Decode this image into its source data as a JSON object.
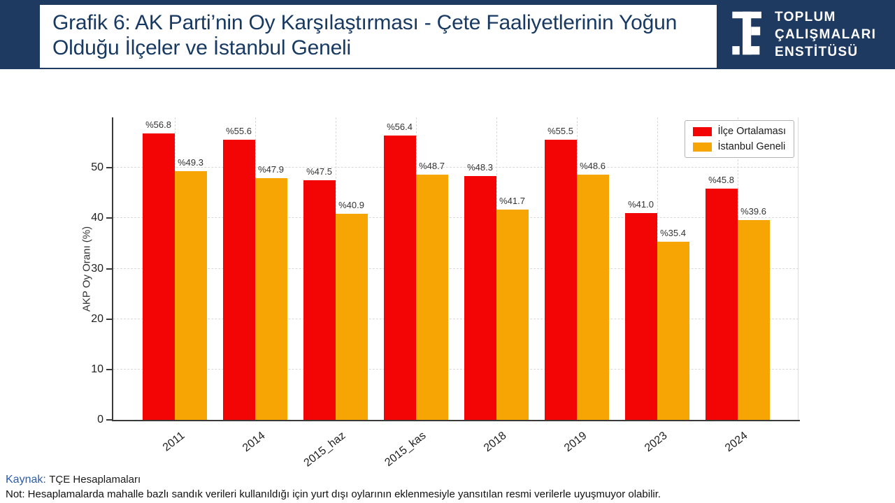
{
  "header": {
    "title": "Grafik 6: AK Parti’nin Oy Karşılaştırması  - Çete Faaliyetlerinin Yoğun Olduğu İlçeler ve İstanbul Geneli",
    "bg_color": "#1f3a60",
    "title_color": "#173962"
  },
  "logo": {
    "icon": "tce-monogram-icon",
    "lines": [
      "TOPLUM",
      "ÇALIŞMALARI",
      "ENSTİTÜSÜ"
    ]
  },
  "chart_data": {
    "type": "bar",
    "categories": [
      "2011",
      "2014",
      "2015_haz",
      "2015_kas",
      "2018",
      "2019",
      "2023",
      "2024"
    ],
    "series": [
      {
        "name": "İlçe Ortalaması",
        "color": "#f40505",
        "values": [
          56.8,
          55.6,
          47.5,
          56.4,
          48.3,
          55.5,
          41.0,
          45.8
        ]
      },
      {
        "name": "İstanbul Geneli",
        "color": "#f6a504",
        "values": [
          49.3,
          47.9,
          40.9,
          48.7,
          41.7,
          48.6,
          35.4,
          39.6
        ]
      }
    ],
    "value_label_prefix": "%",
    "ylabel": "AKP Oy Oranı (%)",
    "yticks": [
      0,
      10,
      20,
      30,
      40,
      50
    ],
    "ylim": [
      0,
      60
    ],
    "grid": true,
    "legend_position": "upper right"
  },
  "footer": {
    "kaynak_label": "Kaynak:",
    "kaynak_value": "TÇE Hesaplamaları",
    "note": "Not: Hesaplamalarda mahalle bazlı sandık verileri kullanıldığı için yurt dışı oylarının eklenmesiyle yansıtılan resmi verilerle uyuşmuyor olabilir."
  }
}
